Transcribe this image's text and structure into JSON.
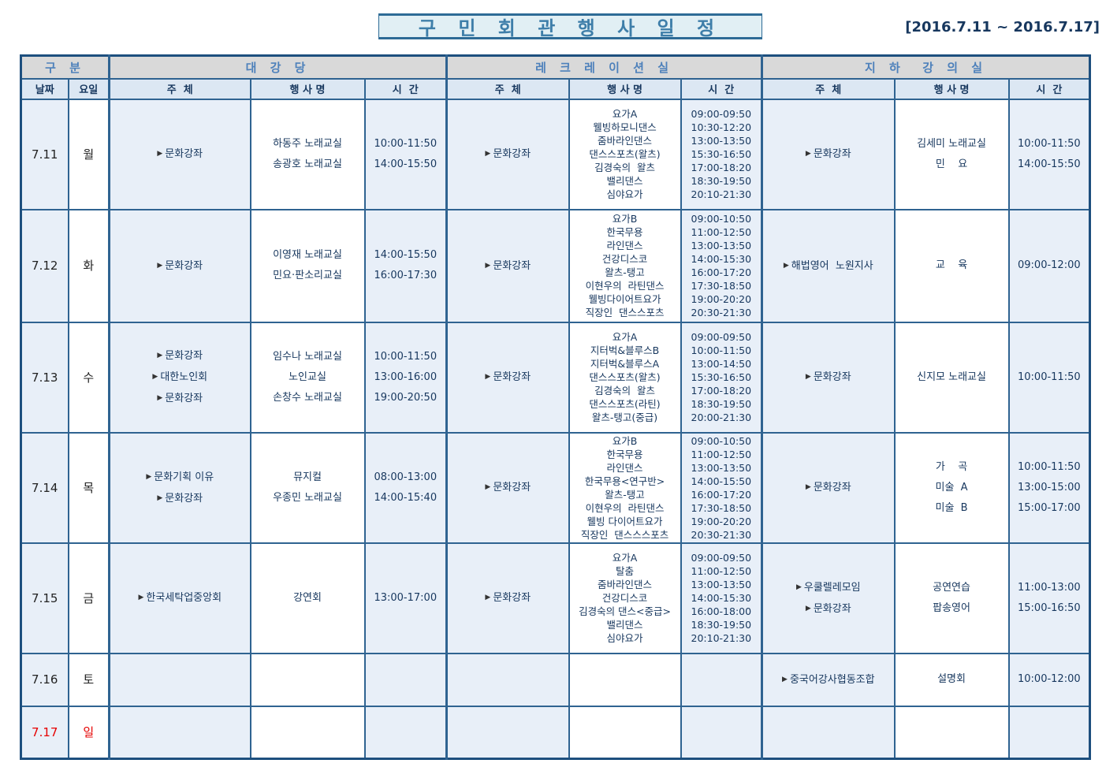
{
  "header": {
    "title": "구 민 회 관 행 사 일 정",
    "date_range": "[2016.7.11 ~ 2016.7.17]"
  },
  "table": {
    "group_headers": [
      "구 분",
      "대 강 당",
      "레 크 레 이 션 실",
      "지 하  강 의 실"
    ],
    "sub_headers": [
      "날짜",
      "요일",
      "주  체",
      "행 사 명",
      "시  간",
      "주  체",
      "행 사 명",
      "시  간",
      "주  체",
      "행 사 명",
      "시  간"
    ],
    "rows": [
      {
        "date": "7.11",
        "day": "월",
        "red": false,
        "hall": {
          "hosts": [
            "▶문화강좌"
          ],
          "events": [
            "하동주 노래교실",
            "송광호 노래교실"
          ],
          "times": [
            "10:00-11:50",
            "14:00-15:50"
          ]
        },
        "recreation": {
          "hosts": [
            "▶문화강좌"
          ],
          "events": [
            "요가A",
            "웰빙하모니댄스",
            "줌바라인댄스",
            "댄스스포츠(왈츠)",
            "김경숙의  왈츠",
            "밸리댄스",
            "심야요가"
          ],
          "times": [
            "09:00-09:50",
            "10:30-12:20",
            "13:00-13:50",
            "15:30-16:50",
            "17:00-18:20",
            "18:30-19:50",
            "20:10-21:30"
          ]
        },
        "basement": {
          "hosts": [
            "▶문화강좌"
          ],
          "events": [
            "김세미 노래교실",
            "민    요"
          ],
          "times": [
            "10:00-11:50",
            "14:00-15:50"
          ]
        }
      },
      {
        "date": "7.12",
        "day": "화",
        "red": false,
        "hall": {
          "hosts": [
            "▶문화강좌"
          ],
          "events": [
            "이영재 노래교실",
            "민요·판소리교실"
          ],
          "times": [
            "14:00-15:50",
            "16:00-17:30"
          ]
        },
        "recreation": {
          "hosts": [
            "▶문화강좌"
          ],
          "events": [
            "요가B",
            "한국무용",
            "라인댄스",
            "건강디스코",
            "왈츠-탱고",
            "이현우의  라틴댄스",
            "웰빙다이어트요가",
            "직장인  댄스스포츠"
          ],
          "times": [
            "09:00-10:50",
            "11:00-12:50",
            "13:00-13:50",
            "14:00-15:30",
            "16:00-17:20",
            "17:30-18:50",
            "19:00-20:20",
            "20:30-21:30"
          ]
        },
        "basement": {
          "hosts": [
            "▶해법영어  노원지사"
          ],
          "events": [
            "교    육"
          ],
          "times": [
            "09:00-12:00"
          ]
        }
      },
      {
        "date": "7.13",
        "day": "수",
        "red": false,
        "hall": {
          "hosts": [
            "▶문화강좌",
            "▶대한노인회",
            "▶문화강좌"
          ],
          "events": [
            "임수나 노래교실",
            "노인교실",
            "손창수 노래교실"
          ],
          "times": [
            "10:00-11:50",
            "13:00-16:00",
            "19:00-20:50"
          ]
        },
        "recreation": {
          "hosts": [
            "▶문화강좌"
          ],
          "events": [
            "요가A",
            "지터벅&블루스B",
            "지터벅&블루스A",
            "댄스스포츠(왈츠)",
            "김경숙의  왈츠",
            "댄스스포츠(라틴)",
            "왈츠-탱고(중급)"
          ],
          "times": [
            "09:00-09:50",
            "10:00-11:50",
            "13:00-14:50",
            "15:30-16:50",
            "17:00-18:20",
            "18:30-19:50",
            "20:00-21:30"
          ]
        },
        "basement": {
          "hosts": [
            "▶문화강좌"
          ],
          "events": [
            "신지모 노래교실"
          ],
          "times": [
            "10:00-11:50"
          ]
        }
      },
      {
        "date": "7.14",
        "day": "목",
        "red": false,
        "hall": {
          "hosts": [
            "▶문화기획 이유",
            "▶문화강좌"
          ],
          "events": [
            "뮤지컬",
            "우종민 노래교실"
          ],
          "times": [
            "08:00-13:00",
            "14:00-15:40"
          ]
        },
        "recreation": {
          "hosts": [
            "▶문화강좌"
          ],
          "events": [
            "요가B",
            "한국무용",
            "라인댄스",
            "한국무용<연구반>",
            "왈츠-탱고",
            "이현우의  라틴댄스",
            "웰빙 다이어트요가",
            "직장인  댄스스스포츠"
          ],
          "times": [
            "09:00-10:50",
            "11:00-12:50",
            "13:00-13:50",
            "14:00-15:50",
            "16:00-17:20",
            "17:30-18:50",
            "19:00-20:20",
            "20:30-21:30"
          ]
        },
        "basement": {
          "hosts": [
            "▶문화강좌"
          ],
          "events": [
            "가    곡",
            "미술  A",
            "미술  B"
          ],
          "times": [
            "10:00-11:50",
            "13:00-15:00",
            "15:00-17:00"
          ]
        }
      },
      {
        "date": "7.15",
        "day": "금",
        "red": false,
        "hall": {
          "hosts": [
            "▶한국세탁업중앙회"
          ],
          "events": [
            "강연회"
          ],
          "times": [
            "13:00-17:00"
          ]
        },
        "recreation": {
          "hosts": [
            "▶문화강좌"
          ],
          "events": [
            "요가A",
            "탈춤",
            "줌바라인댄스",
            "건강디스코",
            "김경숙의 댄스<중급>",
            "밸리댄스",
            "심야요가"
          ],
          "times": [
            "09:00-09:50",
            "11:00-12:50",
            "13:00-13:50",
            "14:00-15:30",
            "16:00-18:00",
            "18:30-19:50",
            "20:10-21:30"
          ]
        },
        "basement": {
          "hosts": [
            "▶우쿨렐레모임",
            "▶문화강좌"
          ],
          "events": [
            "공연연습",
            "팝송영어"
          ],
          "times": [
            "11:00-13:00",
            "15:00-16:50"
          ]
        }
      },
      {
        "date": "7.16",
        "day": "토",
        "red": false,
        "hall": {
          "hosts": [],
          "events": [],
          "times": []
        },
        "recreation": {
          "hosts": [],
          "events": [],
          "times": []
        },
        "basement": {
          "hosts": [
            "▶중국어강사협동조합"
          ],
          "events": [
            "설명회"
          ],
          "times": [
            "10:00-12:00"
          ]
        }
      },
      {
        "date": "7.17",
        "day": "일",
        "red": true,
        "hall": {
          "hosts": [],
          "events": [],
          "times": []
        },
        "recreation": {
          "hosts": [],
          "events": [],
          "times": []
        },
        "basement": {
          "hosts": [],
          "events": [],
          "times": []
        }
      }
    ]
  }
}
